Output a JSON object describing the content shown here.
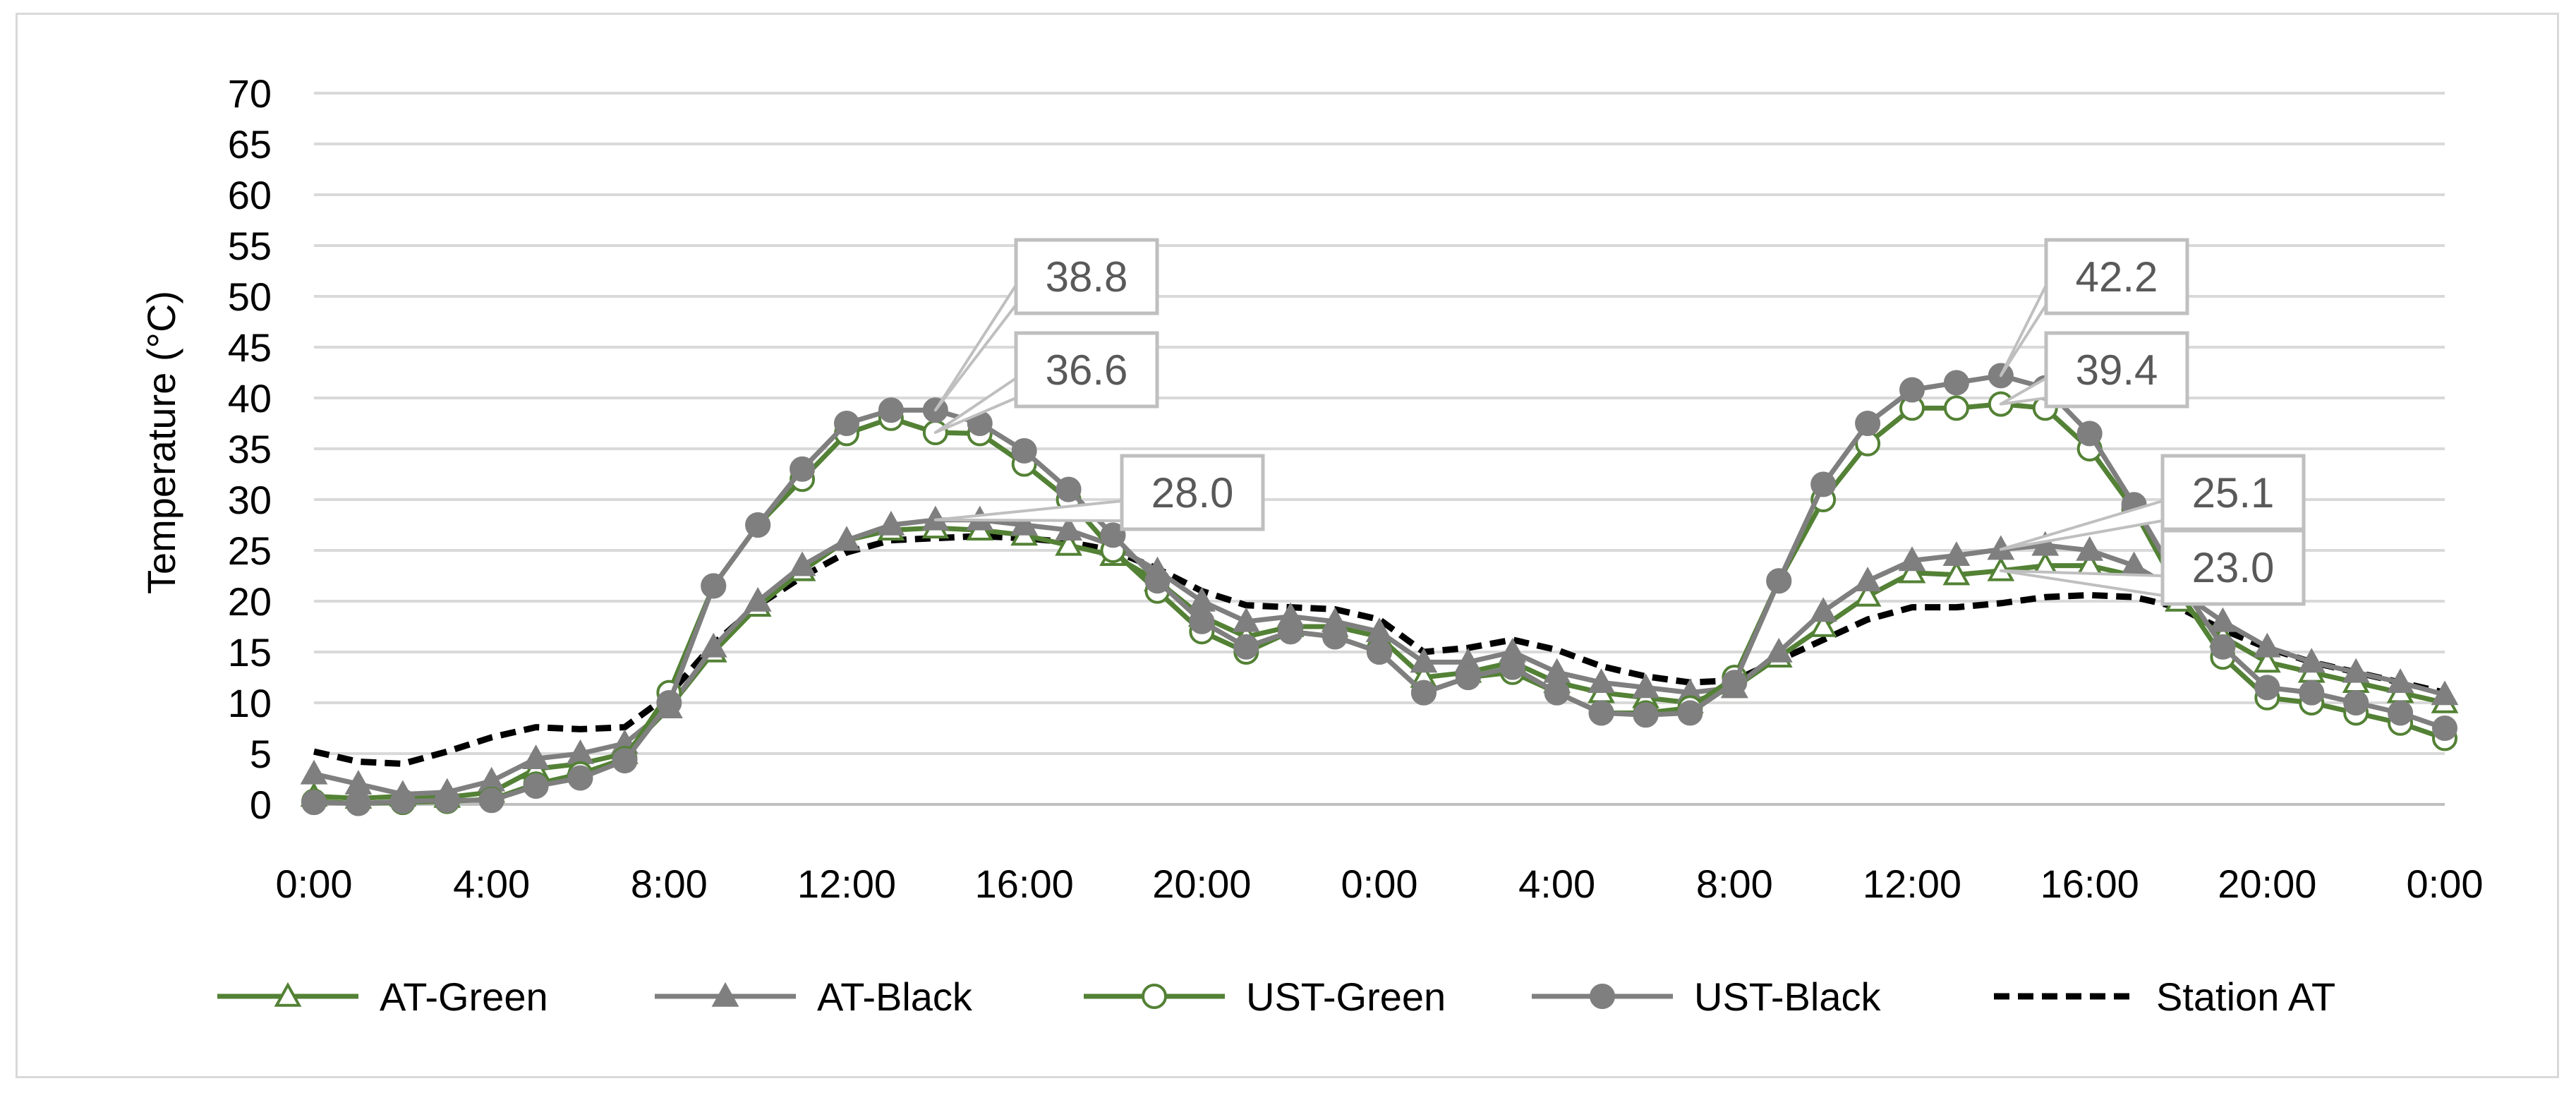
{
  "chart_data": {
    "type": "line",
    "title": "",
    "xlabel": "",
    "ylabel": "Temperature (°C)",
    "ylim": [
      0,
      70
    ],
    "y_ticks": [
      "0",
      "5",
      "10",
      "15",
      "20",
      "25",
      "30",
      "35",
      "40",
      "45",
      "50",
      "55",
      "60",
      "65",
      "70"
    ],
    "x_range_hours": [
      0,
      48
    ],
    "x_ticks": [
      {
        "hour": 0,
        "label": "0:00"
      },
      {
        "hour": 4,
        "label": "4:00"
      },
      {
        "hour": 8,
        "label": "8:00"
      },
      {
        "hour": 12,
        "label": "12:00"
      },
      {
        "hour": 16,
        "label": "16:00"
      },
      {
        "hour": 20,
        "label": "20:00"
      },
      {
        "hour": 24,
        "label": "0:00"
      },
      {
        "hour": 28,
        "label": "4:00"
      },
      {
        "hour": 32,
        "label": "8:00"
      },
      {
        "hour": 36,
        "label": "12:00"
      },
      {
        "hour": 40,
        "label": "16:00"
      },
      {
        "hour": 44,
        "label": "20:00"
      },
      {
        "hour": 48,
        "label": "0:00"
      }
    ],
    "grid": "horizontal",
    "legend_position": "bottom",
    "x_hours": [
      0,
      1,
      2,
      3,
      4,
      5,
      6,
      7,
      8,
      9,
      10,
      11,
      12,
      13,
      14,
      15,
      16,
      17,
      18,
      19,
      20,
      21,
      22,
      23,
      24,
      25,
      26,
      27,
      28,
      29,
      30,
      31,
      32,
      33,
      34,
      35,
      36,
      37,
      38,
      39,
      40,
      41,
      42,
      43,
      44,
      45,
      46,
      47,
      48
    ],
    "series": [
      {
        "name": "AT-Green",
        "color": "#538135",
        "line_style": "solid",
        "marker": "triangle-open",
        "values": [
          0.8,
          0.6,
          0.8,
          0.7,
          1.2,
          3.5,
          4.0,
          5.0,
          9.5,
          15.0,
          19.5,
          23.0,
          26.0,
          27.0,
          27.2,
          27.0,
          26.5,
          25.5,
          24.5,
          22.0,
          18.5,
          16.5,
          17.5,
          17.5,
          16.5,
          12.5,
          13.0,
          14.0,
          12.0,
          11.0,
          10.5,
          10.0,
          11.5,
          14.5,
          17.5,
          20.5,
          22.8,
          22.6,
          23.0,
          23.5,
          23.5,
          22.5,
          20.0,
          16.5,
          14.0,
          13.0,
          12.0,
          11.0,
          10.0
        ]
      },
      {
        "name": "AT-Black",
        "color": "#7f7f7f",
        "line_style": "solid",
        "marker": "triangle-filled",
        "values": [
          3.0,
          2.0,
          1.0,
          1.2,
          2.3,
          4.5,
          5.0,
          6.0,
          9.5,
          15.5,
          20.0,
          23.5,
          26.0,
          27.5,
          28.0,
          28.0,
          27.5,
          27.0,
          25.5,
          23.0,
          20.0,
          18.0,
          18.5,
          18.0,
          17.0,
          14.0,
          14.0,
          15.0,
          13.0,
          12.0,
          11.5,
          11.0,
          11.5,
          15.0,
          19.0,
          22.0,
          24.0,
          24.5,
          25.1,
          25.5,
          25.0,
          23.5,
          21.0,
          18.0,
          15.5,
          14.0,
          13.0,
          12.0,
          10.8
        ]
      },
      {
        "name": "UST-Green",
        "color": "#538135",
        "line_style": "solid",
        "marker": "circle-open",
        "values": [
          0.3,
          0.1,
          0.2,
          0.3,
          0.5,
          2.0,
          3.0,
          4.5,
          11.0,
          21.5,
          27.5,
          32.0,
          36.5,
          38.0,
          36.6,
          36.5,
          33.5,
          30.0,
          25.0,
          21.0,
          17.0,
          15.0,
          17.0,
          16.5,
          15.0,
          11.0,
          12.5,
          13.0,
          11.0,
          9.0,
          9.0,
          9.5,
          12.5,
          22.0,
          30.0,
          35.5,
          39.0,
          39.0,
          39.4,
          39.0,
          35.0,
          29.0,
          21.0,
          14.5,
          10.5,
          10.0,
          9.0,
          8.0,
          6.5
        ]
      },
      {
        "name": "UST-Black",
        "color": "#7f7f7f",
        "line_style": "solid",
        "marker": "circle-filled",
        "values": [
          0.2,
          0.1,
          0.3,
          0.4,
          0.4,
          1.8,
          2.6,
          4.3,
          10.0,
          21.5,
          27.5,
          33.0,
          37.5,
          38.8,
          38.8,
          37.5,
          34.8,
          31.0,
          26.5,
          22.0,
          18.0,
          15.5,
          17.0,
          16.5,
          15.0,
          11.0,
          12.5,
          13.5,
          11.0,
          9.0,
          8.8,
          9.0,
          12.0,
          22.0,
          31.5,
          37.5,
          40.8,
          41.5,
          42.2,
          41.0,
          36.5,
          29.5,
          22.0,
          15.5,
          11.5,
          11.0,
          10.0,
          9.0,
          7.5
        ]
      },
      {
        "name": "Station AT",
        "color": "#000000",
        "line_style": "dashed",
        "marker": "none",
        "values": [
          5.2,
          4.2,
          4.0,
          5.2,
          6.6,
          7.6,
          7.4,
          7.6,
          10.8,
          15.8,
          19.6,
          22.4,
          24.8,
          26.0,
          26.2,
          26.4,
          26.2,
          25.8,
          25.0,
          23.2,
          21.0,
          19.6,
          19.4,
          19.2,
          18.2,
          15.0,
          15.4,
          16.2,
          15.2,
          13.6,
          12.6,
          12.0,
          12.2,
          14.2,
          16.2,
          18.2,
          19.4,
          19.4,
          19.8,
          20.4,
          20.6,
          20.4,
          19.4,
          17.2,
          15.4,
          14.0,
          13.0,
          12.0,
          11.0
        ]
      }
    ],
    "annotations": [
      {
        "text": "38.8",
        "series": "UST-Black",
        "hour": 14
      },
      {
        "text": "36.6",
        "series": "UST-Green",
        "hour": 14
      },
      {
        "text": "28.0",
        "series": "AT-Black",
        "hour": 14
      },
      {
        "text": "42.2",
        "series": "UST-Black",
        "hour": 38
      },
      {
        "text": "39.4",
        "series": "UST-Green",
        "hour": 38
      },
      {
        "text": "25.1",
        "series": "AT-Black",
        "hour": 38
      },
      {
        "text": "23.0",
        "series": "AT-Green",
        "hour": 38
      }
    ],
    "style": {
      "gridline_color": "#d9d9d9",
      "callout_border_color": "#bfbfbf",
      "callout_text_color": "#595959",
      "frame_border_color": "#d9d9d9"
    }
  }
}
